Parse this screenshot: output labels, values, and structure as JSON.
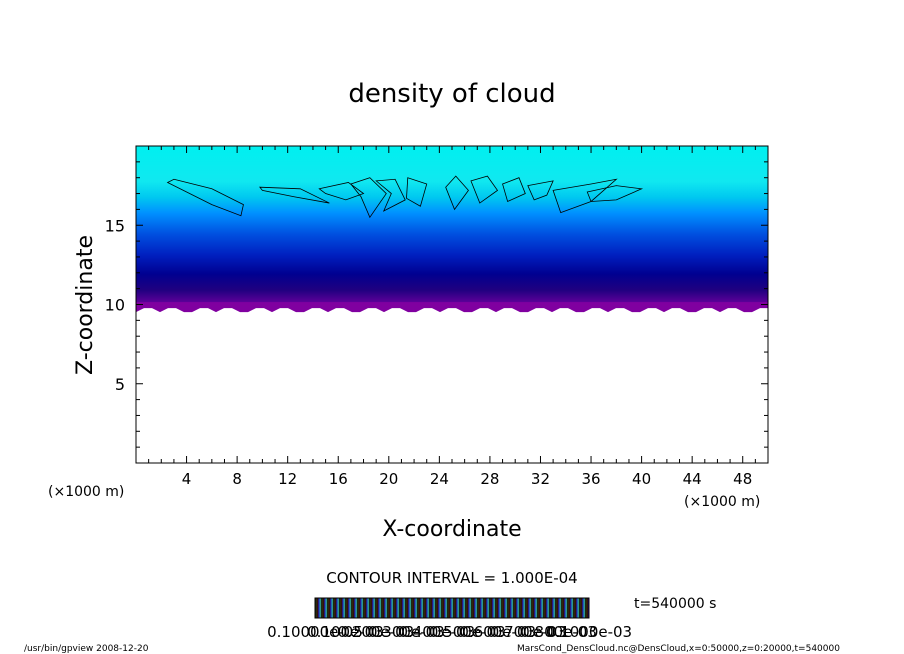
{
  "chart_data": {
    "type": "heatmap",
    "title": "density of cloud",
    "xlabel": "X-coordinate",
    "ylabel": "Z-coordinate",
    "x_unit": "(×1000 m)",
    "z_unit": "(×1000 m)",
    "xlim": [
      0,
      50
    ],
    "ylim": [
      0,
      20
    ],
    "x_ticks": [
      "4",
      "8",
      "12",
      "16",
      "20",
      "24",
      "28",
      "32",
      "36",
      "40",
      "44",
      "48"
    ],
    "y_ticks": [
      "5",
      "10",
      "15"
    ],
    "x_tick_values": [
      4,
      8,
      12,
      16,
      20,
      24,
      28,
      32,
      36,
      40,
      44,
      48
    ],
    "y_tick_values": [
      5,
      10,
      15
    ],
    "cloud_base_z": 9.9,
    "cloud_top_z": 20,
    "contour_interval": "CONTOUR INTERVAL = 1.000E-04",
    "time_label": "t=540000 s",
    "colorbar_labels": [
      "0.10000e-05",
      "0.100e-03",
      "0.200e-03",
      "0.300e-03",
      "0.400e-03",
      "0.500e-03",
      "0.600e-03",
      "0.700e-03",
      "0.800e-03",
      "0.1000e-03"
    ],
    "colors": {
      "top": "#00f0f0",
      "mid": "#0070ff",
      "deep": "#0000a0",
      "base": "#8000a0",
      "colorbar_bg": "#000000"
    }
  },
  "footer": {
    "left": "/usr/bin/gpview   2008-12-20",
    "right": "MarsCond_DensCloud.nc@DensCloud,x=0:50000,z=0:20000,t=540000"
  }
}
